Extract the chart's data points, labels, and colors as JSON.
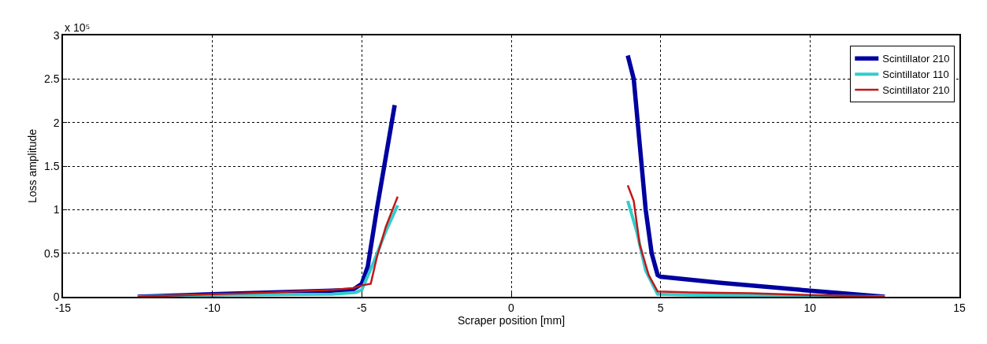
{
  "chart_data": {
    "type": "line",
    "xlabel": "Scraper position [mm]",
    "ylabel": "Loss amplitude",
    "annotations": [
      "x 10⁵"
    ],
    "xlim": [
      -15,
      15
    ],
    "xticks": [
      -15,
      -10,
      -5,
      0,
      5,
      10,
      15
    ],
    "ylim": [
      0,
      3
    ],
    "yticks": [
      0,
      0.5,
      1,
      1.5,
      2,
      2.5,
      3
    ],
    "grid": true,
    "legend": "top right",
    "line_style": "solid",
    "marker": "none",
    "series": [
      {
        "name": "Scintillator 210",
        "color": "#0000a0",
        "x": [
          -12.5,
          -10,
          -8,
          -6,
          -5.3,
          -5,
          -4.8,
          -4.5,
          -4.2,
          -3.9,
          0,
          3.9,
          4.1,
          4.3,
          4.5,
          4.7,
          4.9,
          5,
          7,
          10,
          12.5
        ],
        "values": [
          0,
          0.03,
          0.05,
          0.07,
          0.08,
          0.15,
          0.35,
          1.0,
          1.6,
          2.2,
          null,
          2.77,
          2.5,
          1.75,
          1.0,
          0.5,
          0.25,
          0.23,
          0.16,
          0.07,
          0
        ]
      },
      {
        "name": "Scintillator 110",
        "color": "#33cccc",
        "x": [
          -12.5,
          -10,
          -6,
          -5.2,
          -5,
          -4.6,
          -4.2,
          -3.8,
          0,
          3.9,
          4.2,
          4.5,
          4.9,
          6,
          10,
          12.5
        ],
        "values": [
          0,
          0.02,
          0.03,
          0.05,
          0.08,
          0.4,
          0.75,
          1.05,
          null,
          1.1,
          0.75,
          0.3,
          0.03,
          0.02,
          0.01,
          0
        ]
      },
      {
        "name": "Scintillator 210",
        "color": "#c01818",
        "x": [
          -12.5,
          -10,
          -8,
          -6,
          -5.3,
          -5,
          -4.7,
          -4.5,
          -4.2,
          -3.8,
          0,
          3.9,
          4.1,
          4.3,
          4.6,
          4.9,
          6,
          8,
          10,
          12.5
        ],
        "values": [
          0,
          0.03,
          0.05,
          0.08,
          0.1,
          0.13,
          0.15,
          0.45,
          0.8,
          1.15,
          null,
          1.28,
          1.1,
          0.6,
          0.25,
          0.06,
          0.05,
          0.04,
          0.02,
          0
        ]
      }
    ]
  }
}
